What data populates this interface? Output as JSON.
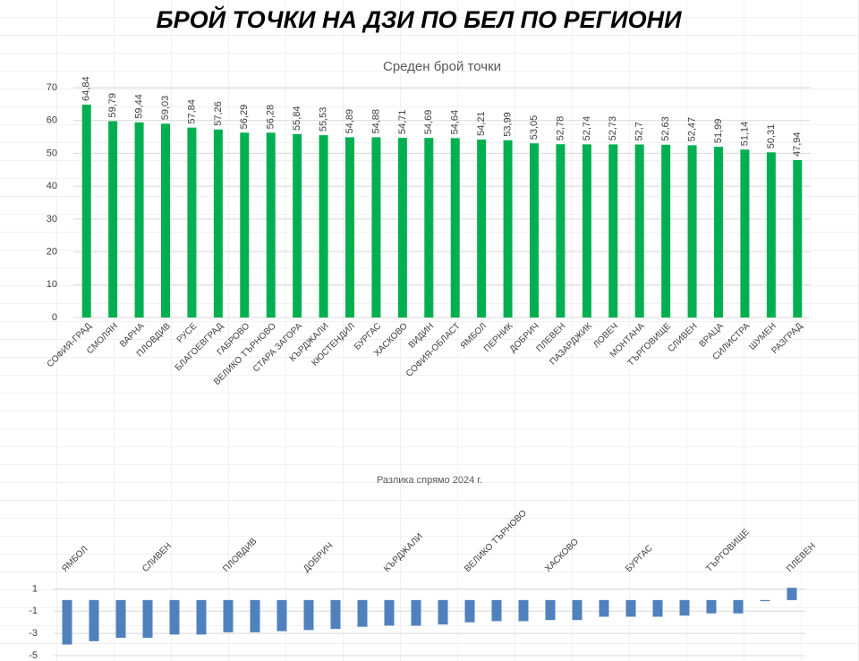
{
  "heading": "БРОЙ ТОЧКИ НА ДЗИ ПО БЕЛ ПО РЕГИОНИ",
  "chart_data": [
    {
      "type": "bar",
      "title": "Среден брой точки",
      "categories": [
        "СОФИЯ-ГРАД",
        "СМОЛЯН",
        "ВАРНА",
        "ПЛОВДИВ",
        "РУСЕ",
        "БЛАГОЕВГРАД",
        "ГАБРОВО",
        "ВЕЛИКО ТЪРНОВО",
        "СТАРА ЗАГОРА",
        "КЪРДЖАЛИ",
        "КЮСТЕНДИЛ",
        "БУРГАС",
        "ХАСКОВО",
        "ВИДИН",
        "СОФИЯ-ОБЛАСТ",
        "ЯМБОЛ",
        "ПЕРНИК",
        "ДОБРИЧ",
        "ПЛЕВЕН",
        "ПАЗАРДЖИК",
        "ЛОВЕЧ",
        "МОНТАНА",
        "ТЪРГОВИЩЕ",
        "СЛИВЕН",
        "ВРАЦА",
        "СИЛИСТРА",
        "ШУМЕН",
        "РАЗГРАД"
      ],
      "values": [
        64.84,
        59.79,
        59.44,
        59.03,
        57.84,
        57.26,
        56.29,
        56.28,
        55.84,
        55.53,
        54.89,
        54.88,
        54.71,
        54.69,
        54.64,
        54.21,
        53.99,
        53.05,
        52.78,
        52.74,
        52.73,
        52.7,
        52.63,
        52.47,
        51.99,
        51.14,
        50.31,
        47.94
      ],
      "value_labels": [
        "64,84",
        "59,79",
        "59,44",
        "59,03",
        "57,84",
        "57,26",
        "56,29",
        "56,28",
        "55,84",
        "55,53",
        "54,89",
        "54,88",
        "54,71",
        "54,69",
        "54,64",
        "54,21",
        "53,99",
        "53,05",
        "52,78",
        "52,74",
        "52,73",
        "52,7",
        "52,63",
        "52,47",
        "51,99",
        "51,14",
        "50,31",
        "47,94"
      ],
      "color": "#00b050",
      "ylim": [
        0,
        70
      ],
      "yticks": [
        0,
        10,
        20,
        30,
        40,
        50,
        60,
        70
      ],
      "grid": true
    },
    {
      "type": "bar",
      "title": "Разлика спрямо 2024 г.",
      "categories": [
        "ЯМБОЛ",
        null,
        null,
        "СЛИВЕН",
        null,
        null,
        "ПЛОВДИВ",
        null,
        null,
        "ДОБРИЧ",
        null,
        null,
        "КЪРДЖАЛИ",
        null,
        null,
        "ВЕЛИКО ТЪРНОВО",
        null,
        null,
        "ХАСКОВО",
        null,
        null,
        "БУРГАС",
        null,
        null,
        "ТЪРГОВИЩЕ",
        null,
        null,
        "ПЛЕВЕН"
      ],
      "values": [
        -4.0,
        -3.7,
        -3.4,
        -3.4,
        -3.1,
        -3.1,
        -2.9,
        -2.9,
        -2.8,
        -2.7,
        -2.6,
        -2.4,
        -2.3,
        -2.3,
        -2.2,
        -2.0,
        -1.9,
        -1.9,
        -1.8,
        -1.8,
        -1.5,
        -1.5,
        -1.5,
        -1.4,
        -1.2,
        -1.2,
        -0.1,
        1.1
      ],
      "color": "#4f81bd",
      "ylim": [
        -5,
        2
      ],
      "yticks": [
        1,
        -1,
        -3,
        -5
      ],
      "grid": true
    }
  ]
}
